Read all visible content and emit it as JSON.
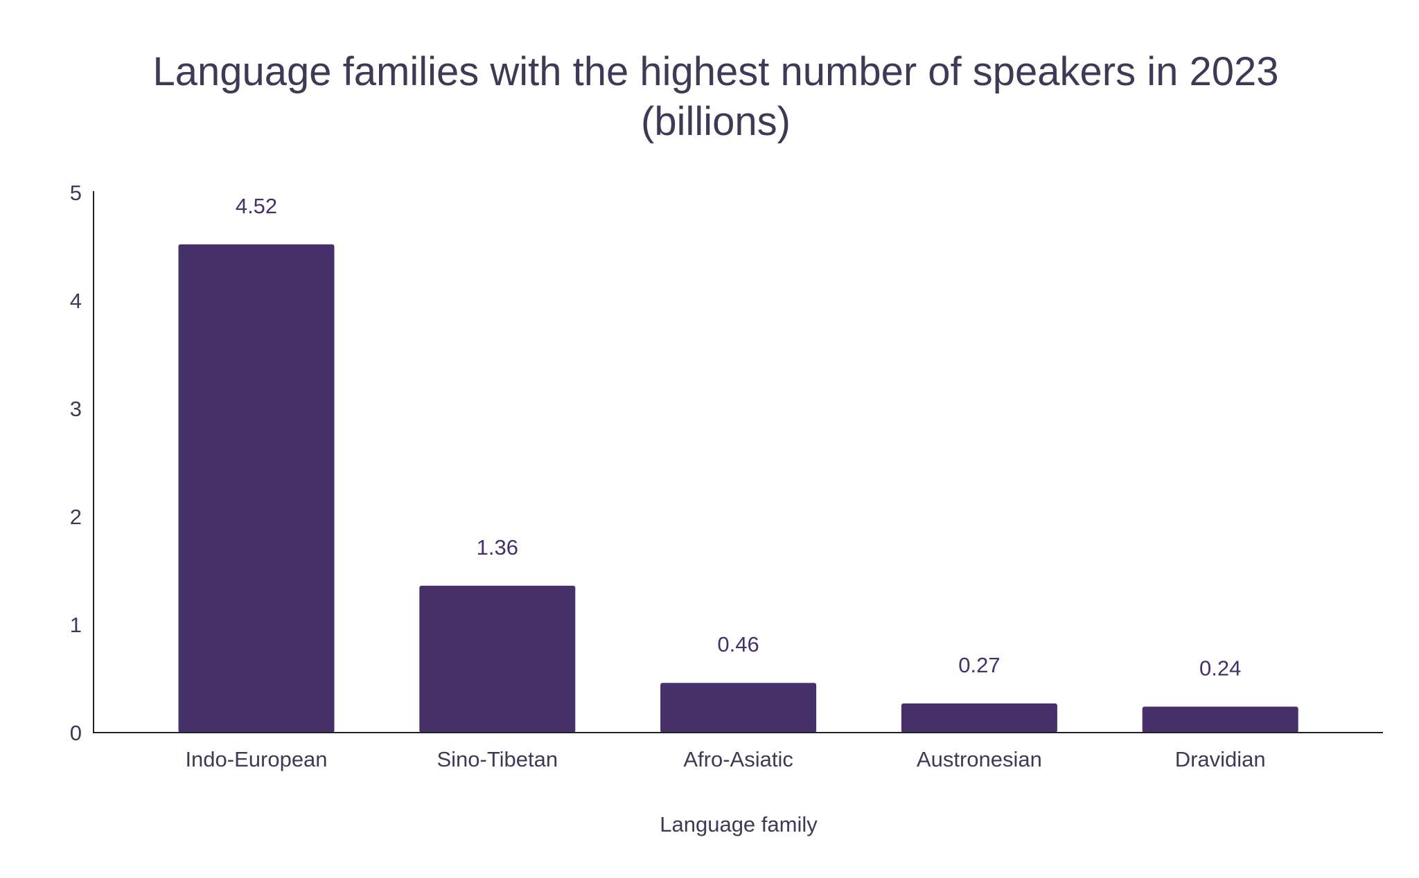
{
  "chart_data": {
    "type": "bar",
    "title": [
      "Language families with the highest number of speakers in 2023",
      "(billions)"
    ],
    "xlabel": "Language family",
    "ylabel": "",
    "categories": [
      "Indo-European",
      "Sino-Tibetan",
      "Afro-Asiatic",
      "Austronesian",
      "Dravidian"
    ],
    "values": [
      4.52,
      1.36,
      0.46,
      0.27,
      0.24
    ],
    "value_labels": [
      "4.52",
      "1.36",
      "0.46",
      "0.27",
      "0.24"
    ],
    "ylim": [
      0,
      5
    ],
    "yticks": [
      "0",
      "1",
      "2",
      "3",
      "4",
      "5"
    ],
    "grid": false,
    "bar_color": "#45306a",
    "text_color": "#3d3a55"
  }
}
